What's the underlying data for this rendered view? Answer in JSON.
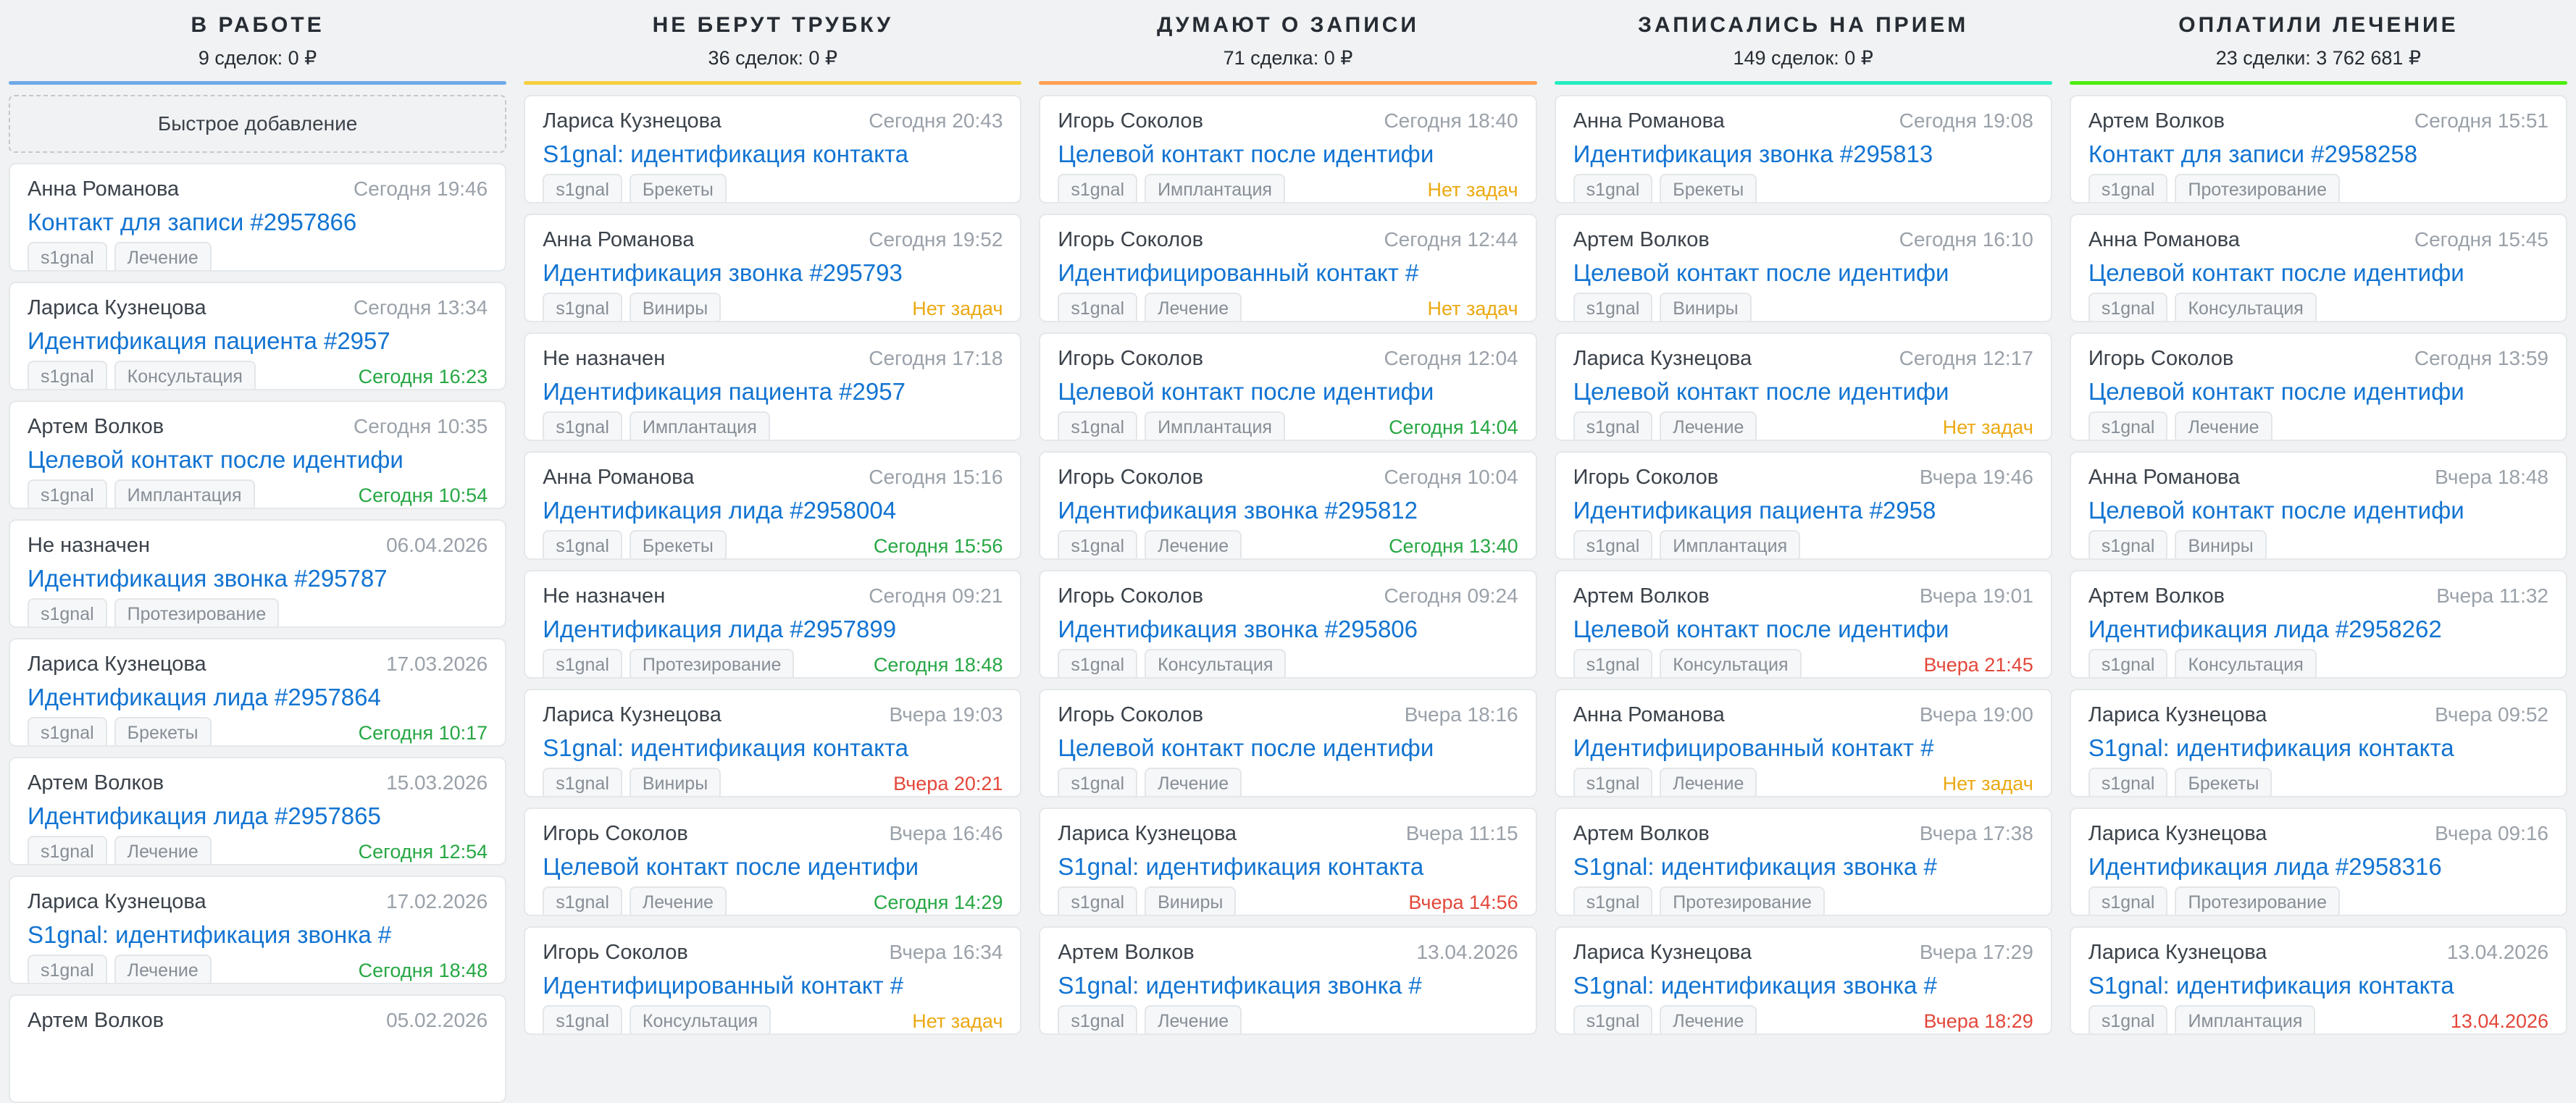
{
  "status_colors": {
    "green": "#27a744",
    "red": "#e3473a",
    "amber": "#eba912"
  },
  "board": {
    "columns": [
      {
        "title": "В РАБОТЕ",
        "summary": "9 сделок: 0 ₽",
        "accent": "#6fa9e8",
        "quick_add_label": "Быстрое добавление",
        "cards": [
          {
            "name": "Анна Романова",
            "date": "Сегодня 19:46",
            "title": "Контакт для записи #2957866",
            "tags": [
              "s1gnal",
              "Лечение"
            ]
          },
          {
            "name": "Лариса Кузнецова",
            "date": "Сегодня 13:34",
            "title": "Идентификация пациента #2957",
            "tags": [
              "s1gnal",
              "Консультация"
            ],
            "task": "Сегодня 16:23",
            "task_status": "green"
          },
          {
            "name": "Артем Волков",
            "date": "Сегодня 10:35",
            "title": "Целевой контакт после идентифи",
            "tags": [
              "s1gnal",
              "Имплантация"
            ],
            "task": "Сегодня 10:54",
            "task_status": "green"
          },
          {
            "name": "Не назначен",
            "date": "06.04.2026",
            "title": "Идентификация звонка #295787",
            "tags": [
              "s1gnal",
              "Протезирование"
            ]
          },
          {
            "name": "Лариса Кузнецова",
            "date": "17.03.2026",
            "title": "Идентификация лида #2957864",
            "tags": [
              "s1gnal",
              "Брекеты"
            ],
            "task": "Сегодня 10:17",
            "task_status": "green"
          },
          {
            "name": "Артем Волков",
            "date": "15.03.2026",
            "title": "Идентификация лида #2957865",
            "tags": [
              "s1gnal",
              "Лечение"
            ],
            "task": "Сегодня 12:54",
            "task_status": "green"
          },
          {
            "name": "Лариса Кузнецова",
            "date": "17.02.2026",
            "title": "S1gnal: идентификация звонка #",
            "tags": [
              "s1gnal",
              "Лечение"
            ],
            "task": "Сегодня 18:48",
            "task_status": "green"
          },
          {
            "name": "Артем Волков",
            "date": "05.02.2026",
            "title": "",
            "tags": []
          }
        ]
      },
      {
        "title": "НЕ БЕРУТ ТРУБКУ",
        "summary": "36 сделок: 0 ₽",
        "accent": "#f6cf3e",
        "cards": [
          {
            "name": "Лариса Кузнецова",
            "date": "Сегодня 20:43",
            "title": "S1gnal: идентификация контакта",
            "tags": [
              "s1gnal",
              "Брекеты"
            ]
          },
          {
            "name": "Анна Романова",
            "date": "Сегодня 19:52",
            "title": "Идентификация звонка #295793",
            "tags": [
              "s1gnal",
              "Виниры"
            ],
            "task": "Нет задач",
            "task_status": "amber"
          },
          {
            "name": "Не назначен",
            "date": "Сегодня 17:18",
            "title": "Идентификация пациента #2957",
            "tags": [
              "s1gnal",
              "Имплантация"
            ]
          },
          {
            "name": "Анна Романова",
            "date": "Сегодня 15:16",
            "title": "Идентификация лида #2958004",
            "tags": [
              "s1gnal",
              "Брекеты"
            ],
            "task": "Сегодня 15:56",
            "task_status": "green"
          },
          {
            "name": "Не назначен",
            "date": "Сегодня 09:21",
            "title": "Идентификация лида #2957899",
            "tags": [
              "s1gnal",
              "Протезирование"
            ],
            "task": "Сегодня 18:48",
            "task_status": "green"
          },
          {
            "name": "Лариса Кузнецова",
            "date": "Вчера 19:03",
            "title": "S1gnal: идентификация контакта",
            "tags": [
              "s1gnal",
              "Виниры"
            ],
            "task": "Вчера 20:21",
            "task_status": "red"
          },
          {
            "name": "Игорь Соколов",
            "date": "Вчера 16:46",
            "title": "Целевой контакт после идентифи",
            "tags": [
              "s1gnal",
              "Лечение"
            ],
            "task": "Сегодня 14:29",
            "task_status": "green"
          },
          {
            "name": "Игорь Соколов",
            "date": "Вчера 16:34",
            "title": "Идентифицированный контакт #",
            "tags": [
              "s1gnal",
              "Консультация"
            ],
            "task": "Нет задач",
            "task_status": "amber"
          }
        ]
      },
      {
        "title": "ДУМАЮТ О ЗАПИСИ",
        "summary": "71 сделка: 0 ₽",
        "accent": "#fda053",
        "cards": [
          {
            "name": "Игорь Соколов",
            "date": "Сегодня 18:40",
            "title": "Целевой контакт после идентифи",
            "tags": [
              "s1gnal",
              "Имплантация"
            ],
            "task": "Нет задач",
            "task_status": "amber"
          },
          {
            "name": "Игорь Соколов",
            "date": "Сегодня 12:44",
            "title": "Идентифицированный контакт #",
            "tags": [
              "s1gnal",
              "Лечение"
            ],
            "task": "Нет задач",
            "task_status": "amber"
          },
          {
            "name": "Игорь Соколов",
            "date": "Сегодня 12:04",
            "title": "Целевой контакт после идентифи",
            "tags": [
              "s1gnal",
              "Имплантация"
            ],
            "task": "Сегодня 14:04",
            "task_status": "green"
          },
          {
            "name": "Игорь Соколов",
            "date": "Сегодня 10:04",
            "title": "Идентификация звонка #295812",
            "tags": [
              "s1gnal",
              "Лечение"
            ],
            "task": "Сегодня 13:40",
            "task_status": "green"
          },
          {
            "name": "Игорь Соколов",
            "date": "Сегодня 09:24",
            "title": "Идентификация звонка #295806",
            "tags": [
              "s1gnal",
              "Консультация"
            ]
          },
          {
            "name": "Игорь Соколов",
            "date": "Вчера 18:16",
            "title": "Целевой контакт после идентифи",
            "tags": [
              "s1gnal",
              "Лечение"
            ]
          },
          {
            "name": "Лариса Кузнецова",
            "date": "Вчера 11:15",
            "title": "S1gnal: идентификация контакта",
            "tags": [
              "s1gnal",
              "Виниры"
            ],
            "task": "Вчера 14:56",
            "task_status": "red"
          },
          {
            "name": "Артем Волков",
            "date": "13.04.2026",
            "title": "S1gnal: идентификация звонка #",
            "tags": [
              "s1gnal",
              "Лечение"
            ]
          }
        ]
      },
      {
        "title": "ЗАПИСАЛИСЬ НА ПРИЕМ",
        "summary": "149 сделок: 0 ₽",
        "accent": "#23edc0",
        "cards": [
          {
            "name": "Анна Романова",
            "date": "Сегодня 19:08",
            "title": "Идентификация звонка #295813",
            "tags": [
              "s1gnal",
              "Брекеты"
            ]
          },
          {
            "name": "Артем Волков",
            "date": "Сегодня 16:10",
            "title": "Целевой контакт после идентифи",
            "tags": [
              "s1gnal",
              "Виниры"
            ]
          },
          {
            "name": "Лариса Кузнецова",
            "date": "Сегодня 12:17",
            "title": "Целевой контакт после идентифи",
            "tags": [
              "s1gnal",
              "Лечение"
            ],
            "task": "Нет задач",
            "task_status": "amber"
          },
          {
            "name": "Игорь Соколов",
            "date": "Вчера 19:46",
            "title": "Идентификация пациента #2958",
            "tags": [
              "s1gnal",
              "Имплантация"
            ]
          },
          {
            "name": "Артем Волков",
            "date": "Вчера 19:01",
            "title": "Целевой контакт после идентифи",
            "tags": [
              "s1gnal",
              "Консультация"
            ],
            "task": "Вчера 21:45",
            "task_status": "red"
          },
          {
            "name": "Анна Романова",
            "date": "Вчера 19:00",
            "title": "Идентифицированный контакт #",
            "tags": [
              "s1gnal",
              "Лечение"
            ],
            "task": "Нет задач",
            "task_status": "amber"
          },
          {
            "name": "Артем Волков",
            "date": "Вчера 17:38",
            "title": "S1gnal: идентификация звонка #",
            "tags": [
              "s1gnal",
              "Протезирование"
            ]
          },
          {
            "name": "Лариса Кузнецова",
            "date": "Вчера 17:29",
            "title": "S1gnal: идентификация звонка #",
            "tags": [
              "s1gnal",
              "Лечение"
            ],
            "task": "Вчера 18:29",
            "task_status": "red"
          }
        ]
      },
      {
        "title": "ОПЛАТИЛИ ЛЕЧЕНИЕ",
        "summary": "23 сделки: 3 762 681 ₽",
        "accent": "#4bee0f",
        "cards": [
          {
            "name": "Артем Волков",
            "date": "Сегодня 15:51",
            "title": "Контакт для записи #2958258",
            "tags": [
              "s1gnal",
              "Протезирование"
            ]
          },
          {
            "name": "Анна Романова",
            "date": "Сегодня 15:45",
            "title": "Целевой контакт после идентифи",
            "tags": [
              "s1gnal",
              "Консультация"
            ]
          },
          {
            "name": "Игорь Соколов",
            "date": "Сегодня 13:59",
            "title": "Целевой контакт после идентифи",
            "tags": [
              "s1gnal",
              "Лечение"
            ]
          },
          {
            "name": "Анна Романова",
            "date": "Вчера 18:48",
            "title": "Целевой контакт после идентифи",
            "tags": [
              "s1gnal",
              "Виниры"
            ]
          },
          {
            "name": "Артем Волков",
            "date": "Вчера 11:32",
            "title": "Идентификация лида #2958262",
            "tags": [
              "s1gnal",
              "Консультация"
            ]
          },
          {
            "name": "Лариса Кузнецова",
            "date": "Вчера 09:52",
            "title": "S1gnal: идентификация контакта",
            "tags": [
              "s1gnal",
              "Брекеты"
            ]
          },
          {
            "name": "Лариса Кузнецова",
            "date": "Вчера 09:16",
            "title": "Идентификация лида #2958316",
            "tags": [
              "s1gnal",
              "Протезирование"
            ]
          },
          {
            "name": "Лариса Кузнецова",
            "date": "13.04.2026",
            "title": "S1gnal: идентификация контакта",
            "tags": [
              "s1gnal",
              "Имплантация"
            ],
            "task": "13.04.2026",
            "task_status": "red"
          }
        ]
      }
    ]
  }
}
